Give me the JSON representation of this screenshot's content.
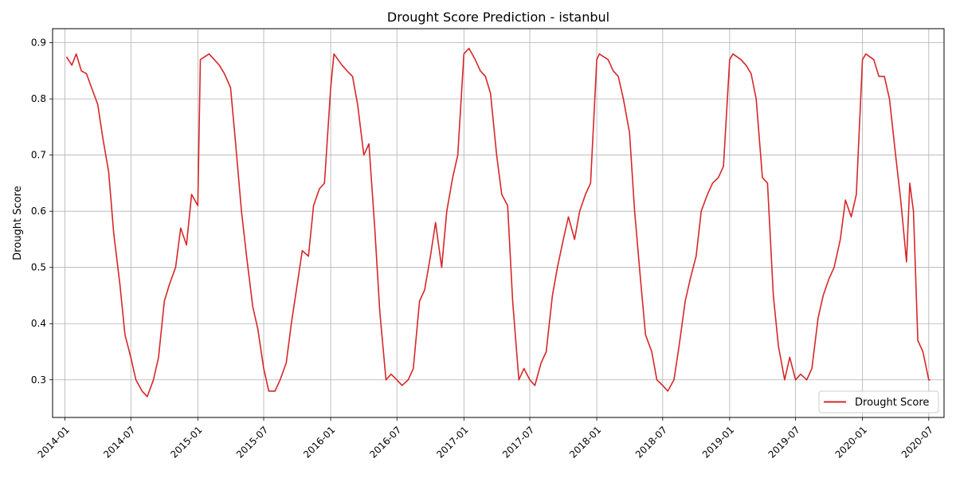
{
  "chart_data": {
    "type": "line",
    "title": "Drought Score Prediction - istanbul",
    "xlabel": "",
    "ylabel": "Drought Score",
    "x_ticks": [
      "2014-01",
      "2014-07",
      "2015-01",
      "2015-07",
      "2016-01",
      "2016-07",
      "2017-01",
      "2017-07",
      "2018-01",
      "2018-07",
      "2019-01",
      "2019-07",
      "2020-01",
      "2020-07"
    ],
    "y_ticks": [
      0.3,
      0.4,
      0.5,
      0.6,
      0.7,
      0.8,
      0.9
    ],
    "ylim": [
      0.233,
      0.925
    ],
    "grid": true,
    "legend": {
      "position": "bottom-right"
    },
    "series": [
      {
        "name": "Drought Score",
        "color": "#d62728",
        "x": [
          "2014-01-05",
          "2014-01-20",
          "2014-02-01",
          "2014-02-15",
          "2014-03-01",
          "2014-03-15",
          "2014-04-01",
          "2014-04-15",
          "2014-05-01",
          "2014-05-15",
          "2014-06-01",
          "2014-06-15",
          "2014-07-01",
          "2014-07-15",
          "2014-08-01",
          "2014-08-15",
          "2014-09-01",
          "2014-09-15",
          "2014-10-01",
          "2014-10-15",
          "2014-11-01",
          "2014-11-15",
          "2014-12-01",
          "2014-12-15",
          "2015-01-01",
          "2015-01-08",
          "2015-02-01",
          "2015-02-15",
          "2015-03-01",
          "2015-03-15",
          "2015-04-01",
          "2015-04-15",
          "2015-05-01",
          "2015-05-15",
          "2015-06-01",
          "2015-06-15",
          "2015-07-01",
          "2015-07-15",
          "2015-08-01",
          "2015-08-15",
          "2015-09-01",
          "2015-09-15",
          "2015-10-01",
          "2015-10-15",
          "2015-11-01",
          "2015-11-15",
          "2015-12-01",
          "2015-12-15",
          "2016-01-01",
          "2016-01-10",
          "2016-02-01",
          "2016-02-15",
          "2016-03-01",
          "2016-03-15",
          "2016-04-01",
          "2016-04-15",
          "2016-05-01",
          "2016-05-15",
          "2016-06-01",
          "2016-06-15",
          "2016-07-01",
          "2016-07-15",
          "2016-08-01",
          "2016-08-15",
          "2016-09-01",
          "2016-09-15",
          "2016-10-01",
          "2016-10-15",
          "2016-11-01",
          "2016-11-15",
          "2016-12-01",
          "2016-12-15",
          "2017-01-01",
          "2017-01-15",
          "2017-02-01",
          "2017-02-15",
          "2017-03-01",
          "2017-03-15",
          "2017-04-01",
          "2017-04-15",
          "2017-05-01",
          "2017-05-15",
          "2017-06-01",
          "2017-06-15",
          "2017-07-01",
          "2017-07-15",
          "2017-08-01",
          "2017-08-15",
          "2017-09-01",
          "2017-09-15",
          "2017-10-01",
          "2017-10-15",
          "2017-11-01",
          "2017-11-15",
          "2017-12-01",
          "2017-12-15",
          "2018-01-01",
          "2018-01-08",
          "2018-02-01",
          "2018-02-15",
          "2018-03-01",
          "2018-03-15",
          "2018-04-01",
          "2018-04-15",
          "2018-05-01",
          "2018-05-15",
          "2018-06-01",
          "2018-06-15",
          "2018-07-01",
          "2018-07-15",
          "2018-08-01",
          "2018-08-15",
          "2018-09-01",
          "2018-09-15",
          "2018-10-01",
          "2018-10-15",
          "2018-11-01",
          "2018-11-15",
          "2018-12-01",
          "2018-12-15",
          "2019-01-01",
          "2019-01-10",
          "2019-02-01",
          "2019-02-15",
          "2019-03-01",
          "2019-03-15",
          "2019-04-01",
          "2019-04-15",
          "2019-05-01",
          "2019-05-15",
          "2019-06-01",
          "2019-06-15",
          "2019-07-01",
          "2019-07-15",
          "2019-08-01",
          "2019-08-15",
          "2019-09-01",
          "2019-09-15",
          "2019-10-01",
          "2019-10-15",
          "2019-11-01",
          "2019-11-15",
          "2019-12-01",
          "2019-12-15",
          "2020-01-01",
          "2020-01-10",
          "2020-02-01",
          "2020-02-15",
          "2020-03-01",
          "2020-03-15",
          "2020-04-01",
          "2020-04-15",
          "2020-05-01",
          "2020-05-10",
          "2020-05-20",
          "2020-06-01",
          "2020-06-15",
          "2020-07-01",
          "2020-07-05"
        ],
        "values": [
          0.875,
          0.86,
          0.88,
          0.85,
          0.845,
          0.82,
          0.79,
          0.73,
          0.67,
          0.56,
          0.47,
          0.38,
          0.34,
          0.3,
          0.28,
          0.27,
          0.3,
          0.34,
          0.44,
          0.47,
          0.5,
          0.57,
          0.54,
          0.63,
          0.61,
          0.87,
          0.88,
          0.87,
          0.86,
          0.845,
          0.82,
          0.72,
          0.6,
          0.52,
          0.43,
          0.39,
          0.32,
          0.28,
          0.28,
          0.3,
          0.33,
          0.4,
          0.47,
          0.53,
          0.52,
          0.61,
          0.64,
          0.65,
          0.82,
          0.88,
          0.86,
          0.85,
          0.84,
          0.79,
          0.7,
          0.72,
          0.57,
          0.42,
          0.3,
          0.31,
          0.3,
          0.29,
          0.3,
          0.32,
          0.44,
          0.46,
          0.52,
          0.58,
          0.5,
          0.6,
          0.66,
          0.7,
          0.88,
          0.89,
          0.87,
          0.85,
          0.84,
          0.81,
          0.7,
          0.63,
          0.61,
          0.44,
          0.3,
          0.32,
          0.3,
          0.29,
          0.33,
          0.35,
          0.45,
          0.5,
          0.55,
          0.59,
          0.55,
          0.6,
          0.63,
          0.65,
          0.87,
          0.88,
          0.87,
          0.85,
          0.84,
          0.8,
          0.74,
          0.6,
          0.48,
          0.38,
          0.35,
          0.3,
          0.29,
          0.28,
          0.3,
          0.36,
          0.44,
          0.48,
          0.52,
          0.6,
          0.63,
          0.65,
          0.66,
          0.68,
          0.87,
          0.88,
          0.87,
          0.86,
          0.845,
          0.8,
          0.66,
          0.65,
          0.45,
          0.36,
          0.3,
          0.34,
          0.3,
          0.31,
          0.3,
          0.32,
          0.41,
          0.45,
          0.48,
          0.5,
          0.55,
          0.62,
          0.59,
          0.63,
          0.87,
          0.88,
          0.87,
          0.84,
          0.84,
          0.8,
          0.7,
          0.62,
          0.51,
          0.65,
          0.6,
          0.37,
          0.35,
          0.3,
          0.3
        ]
      }
    ]
  }
}
